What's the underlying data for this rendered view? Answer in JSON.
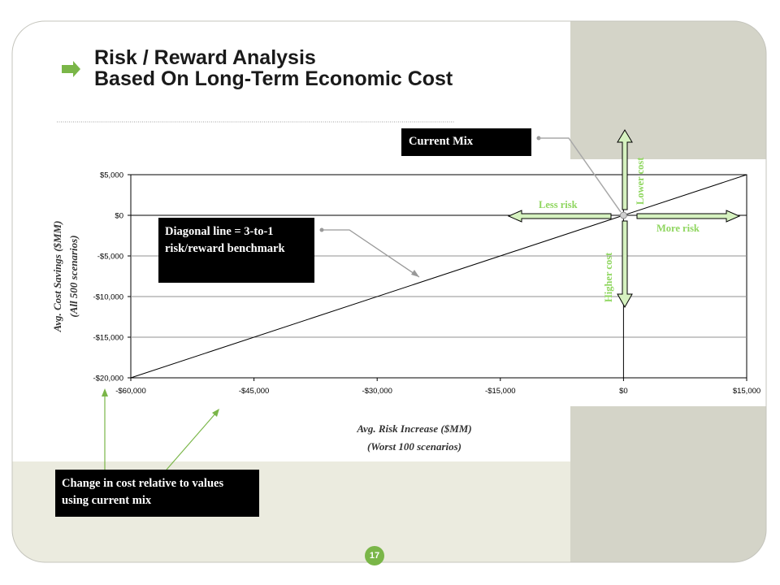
{
  "title": {
    "line1": "Risk / Reward Analysis",
    "line2": "Based On Long-Term Economic Cost"
  },
  "page_number": "17",
  "callouts": {
    "current_mix": "Current Mix",
    "diagonal": "Diagonal line = 3-to-1 risk/reward benchmark",
    "change": "Change in cost relative to values using current mix"
  },
  "arrow_labels": {
    "lower_cost": "Lower cost",
    "higher_cost": "Higher cost",
    "less_risk": "Less risk",
    "more_risk": "More risk"
  },
  "colors": {
    "accent_green": "#8fd65f",
    "arrow_fill": "#d6f2c0",
    "panel_gray": "#d4d4c8",
    "band_olive": "#ebebdf",
    "pointer_gray": "#999999"
  },
  "chart_data": {
    "type": "line",
    "title": "",
    "xlabel": "Avg. Risk Increase ($MM)",
    "xlabel_sub": "(Worst 100 scenarios)",
    "ylabel": "Avg. Cost Savings ($MM)",
    "ylabel_sub": "(All 500 scenarios)",
    "xlim": [
      -60000,
      15000
    ],
    "ylim": [
      -20000,
      5000
    ],
    "x_ticks": [
      -60000,
      -45000,
      -30000,
      -15000,
      0,
      15000
    ],
    "x_tick_labels": [
      "-$60,000",
      "-$45,000",
      "-$30,000",
      "-$15,000",
      "$0",
      "$15,000"
    ],
    "y_ticks": [
      5000,
      0,
      -5000,
      -10000,
      -15000,
      -20000
    ],
    "y_tick_labels": [
      "$5,000",
      "$0",
      "-$5,000",
      "-$10,000",
      "-$15,000",
      "-$20,000"
    ],
    "grid": true,
    "series": [
      {
        "x": [
          -60000,
          15000
        ],
        "y": [
          -20000,
          5000
        ]
      }
    ],
    "highlight_point": {
      "x": 0,
      "y": 0
    }
  }
}
